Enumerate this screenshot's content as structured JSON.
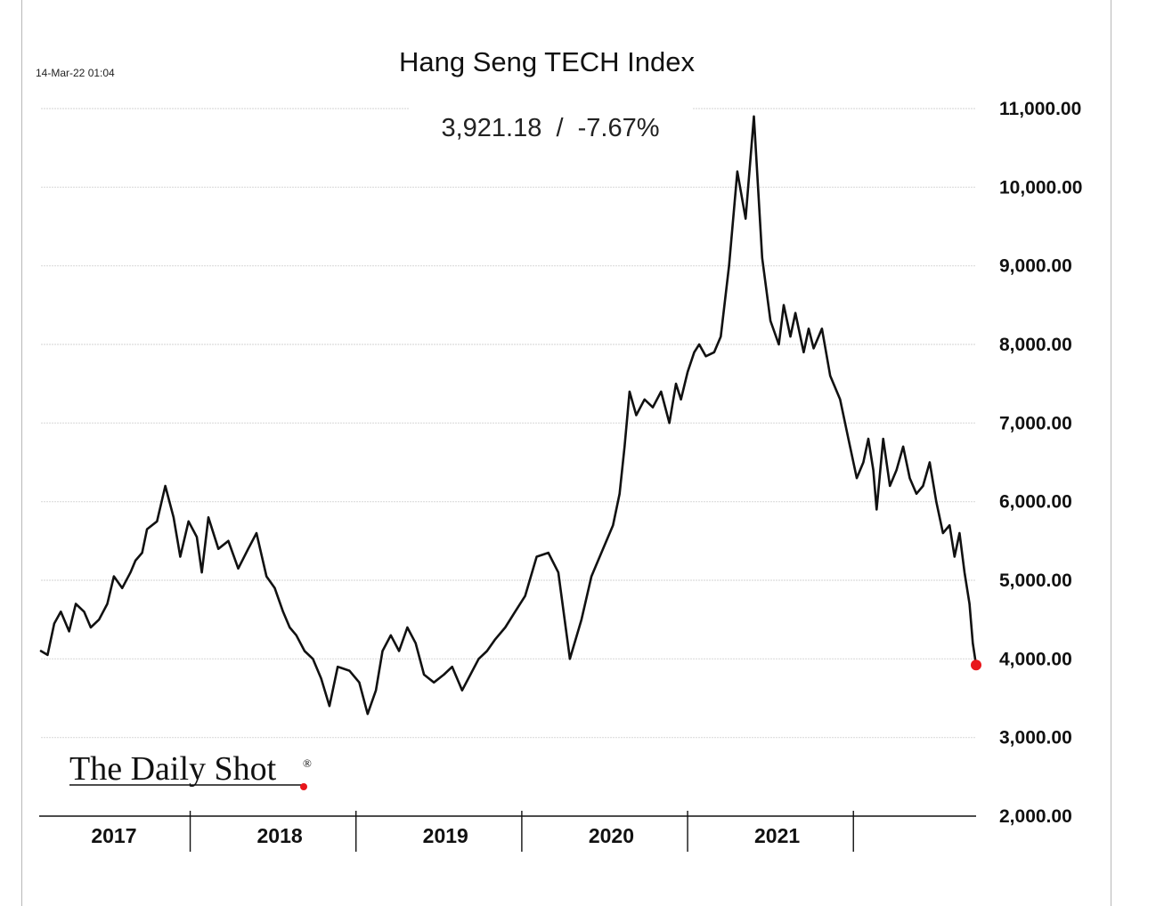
{
  "chart_data": {
    "type": "line",
    "title": "Hang Seng TECH Index",
    "timestamp": "14-Mar-22 01:04",
    "summary": "3,921.18  /  -7.67%",
    "last_value": 3921.18,
    "change_pct": -7.67,
    "xlabel": "",
    "ylabel": "",
    "ylim": [
      2000,
      11000
    ],
    "xlim": [
      2016.56,
      2022.2
    ],
    "y_ticks": [
      {
        "value": 11000,
        "label": "11,000.00"
      },
      {
        "value": 10000,
        "label": "10,000.00"
      },
      {
        "value": 9000,
        "label": "9,000.00"
      },
      {
        "value": 8000,
        "label": "8,000.00"
      },
      {
        "value": 7000,
        "label": "7,000.00"
      },
      {
        "value": 6000,
        "label": "6,000.00"
      },
      {
        "value": 5000,
        "label": "5,000.00"
      },
      {
        "value": 4000,
        "label": "4,000.00"
      },
      {
        "value": 3000,
        "label": "3,000.00"
      },
      {
        "value": 2000,
        "label": "2,000.00"
      }
    ],
    "x_ticks": [
      {
        "value": 2017,
        "label": "2017"
      },
      {
        "value": 2018,
        "label": "2018"
      },
      {
        "value": 2019,
        "label": "2019"
      },
      {
        "value": 2020,
        "label": "2020"
      },
      {
        "value": 2021,
        "label": "2021"
      }
    ],
    "x_dividers": [
      2017.46,
      2018.46,
      2019.46,
      2020.46,
      2021.46
    ],
    "grid": true,
    "line_color": "#111111",
    "marker_color": "#e8161b",
    "series": [
      {
        "name": "Hang Seng TECH Index",
        "x": [
          2016.56,
          2016.6,
          2016.64,
          2016.68,
          2016.73,
          2016.77,
          2016.82,
          2016.86,
          2016.91,
          2016.96,
          2017.0,
          2017.05,
          2017.1,
          2017.13,
          2017.17,
          2017.2,
          2017.26,
          2017.31,
          2017.36,
          2017.4,
          2017.45,
          2017.5,
          2017.53,
          2017.57,
          2017.63,
          2017.69,
          2017.75,
          2017.81,
          2017.86,
          2017.92,
          2017.97,
          2018.02,
          2018.06,
          2018.1,
          2018.15,
          2018.2,
          2018.25,
          2018.3,
          2018.35,
          2018.42,
          2018.48,
          2018.53,
          2018.58,
          2018.62,
          2018.67,
          2018.72,
          2018.77,
          2018.82,
          2018.87,
          2018.93,
          2018.99,
          2019.04,
          2019.1,
          2019.15,
          2019.2,
          2019.25,
          2019.3,
          2019.36,
          2019.42,
          2019.48,
          2019.55,
          2019.62,
          2019.68,
          2019.75,
          2019.82,
          2019.88,
          2019.95,
          2020.01,
          2020.05,
          2020.08,
          2020.11,
          2020.15,
          2020.2,
          2020.25,
          2020.3,
          2020.35,
          2020.39,
          2020.42,
          2020.46,
          2020.5,
          2020.53,
          2020.57,
          2020.62,
          2020.66,
          2020.71,
          2020.76,
          2020.81,
          2020.86,
          2020.91,
          2020.96,
          2021.01,
          2021.04,
          2021.08,
          2021.11,
          2021.13,
          2021.16,
          2021.19,
          2021.22,
          2021.27,
          2021.32,
          2021.38,
          2021.43,
          2021.48,
          2021.52,
          2021.55,
          2021.58,
          2021.6,
          2021.64,
          2021.68,
          2021.72,
          2021.76,
          2021.8,
          2021.84,
          2021.88,
          2021.92,
          2021.96,
          2022.0,
          2022.04,
          2022.07,
          2022.1,
          2022.13,
          2022.16,
          2022.18,
          2022.2
        ],
        "values": [
          4100,
          4050,
          4450,
          4600,
          4350,
          4700,
          4600,
          4400,
          4500,
          4700,
          5050,
          4900,
          5100,
          5250,
          5350,
          5650,
          5750,
          6200,
          5800,
          5300,
          5750,
          5550,
          5100,
          5800,
          5400,
          5500,
          5150,
          5400,
          5600,
          5050,
          4900,
          4600,
          4400,
          4300,
          4100,
          4000,
          3750,
          3400,
          3900,
          3850,
          3700,
          3300,
          3600,
          4100,
          4300,
          4100,
          4400,
          4200,
          3800,
          3700,
          3800,
          3900,
          3600,
          3800,
          4000,
          4100,
          4250,
          4400,
          4600,
          4800,
          5300,
          5350,
          5100,
          4000,
          4500,
          5050,
          5400,
          5700,
          6100,
          6700,
          7400,
          7100,
          7300,
          7200,
          7400,
          7000,
          7500,
          7300,
          7650,
          7900,
          8000,
          7850,
          7900,
          8100,
          9000,
          10200,
          9600,
          10900,
          9100,
          8300,
          8000,
          8500,
          8100,
          8400,
          8200,
          7900,
          8200,
          7950,
          8200,
          7600,
          7300,
          6800,
          6300,
          6500,
          6800,
          6400,
          5900,
          6800,
          6200,
          6400,
          6700,
          6300,
          6100,
          6200,
          6500,
          6000,
          5600,
          5700,
          5300,
          5600,
          5100,
          4700,
          4200,
          3921.18
        ]
      }
    ]
  },
  "logo": {
    "text": "The Daily Shot",
    "mark": "®"
  }
}
